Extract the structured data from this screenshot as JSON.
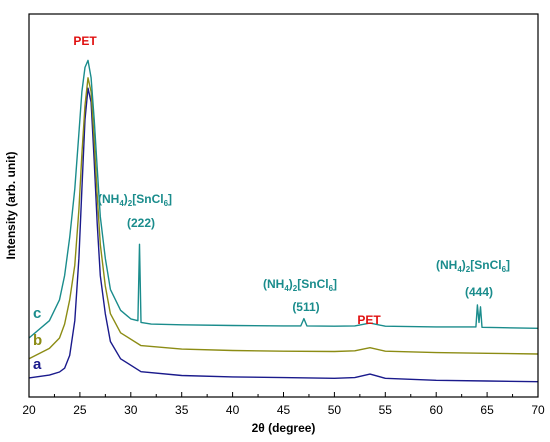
{
  "chart_data": {
    "type": "line",
    "xlabel": "2θ (degree)",
    "ylabel": "Intensity (arb. unit)",
    "xlim": [
      20,
      70
    ],
    "xticks": [
      "20",
      "25",
      "30",
      "35",
      "40",
      "45",
      "50",
      "55",
      "60",
      "65",
      "70"
    ],
    "yticks_shown": false,
    "grid": false,
    "series": [
      {
        "name": "a",
        "color": "#1a1a8c",
        "x": [
          20,
          22,
          23,
          23.5,
          24,
          24.5,
          24.9,
          25.2,
          25.5,
          25.8,
          26.1,
          26.4,
          26.7,
          27,
          27.5,
          28,
          29,
          31,
          35,
          40,
          45,
          50,
          52,
          53.5,
          55,
          60,
          65,
          70
        ],
        "y": [
          5.5,
          6.3,
          7.2,
          8.3,
          12,
          22,
          40,
          60,
          80,
          89,
          85,
          68,
          50,
          35,
          24,
          16,
          11,
          7.3,
          6.2,
          5.8,
          5.6,
          5.4,
          5.6,
          6.6,
          5.4,
          4.8,
          4.6,
          4.4
        ]
      },
      {
        "name": "b",
        "color": "#8c8c14",
        "x": [
          20,
          22,
          23,
          23.5,
          24,
          24.5,
          24.9,
          25.2,
          25.5,
          25.8,
          26.1,
          26.4,
          26.7,
          27,
          27.5,
          28,
          29,
          31,
          35,
          40,
          45,
          50,
          52,
          53.5,
          55,
          60,
          65,
          70
        ],
        "y": [
          11,
          14,
          17,
          21,
          28,
          38,
          54,
          70,
          84,
          92,
          88,
          74,
          58,
          44,
          32,
          24,
          18.5,
          14.8,
          13.8,
          13.4,
          13.2,
          13.1,
          13.3,
          14.2,
          13.2,
          12.8,
          12.6,
          12.4
        ]
      },
      {
        "name": "c",
        "color": "#1a8c8c",
        "x": [
          20,
          22,
          23,
          23.5,
          24,
          24.5,
          24.9,
          25.2,
          25.5,
          25.8,
          26.1,
          26.4,
          26.7,
          27,
          27.5,
          28,
          29,
          30,
          30.7,
          30.85,
          31,
          32,
          35,
          40,
          45,
          46.7,
          47,
          47.3,
          50,
          52,
          53.5,
          55,
          60,
          63.9,
          64.05,
          64.2,
          64.35,
          64.5,
          66,
          70
        ],
        "y": [
          17,
          22,
          28,
          35,
          46,
          60,
          76,
          88,
          95,
          97,
          92,
          80,
          66,
          52,
          40,
          31,
          25,
          22.5,
          22,
          44,
          21.5,
          21,
          20.8,
          20.6,
          20.5,
          20.5,
          22.6,
          20.5,
          20.4,
          20.5,
          21.3,
          20.4,
          20.2,
          20.2,
          26.5,
          21.5,
          26,
          20.1,
          20,
          19.8
        ]
      }
    ],
    "annotations": [
      {
        "id": "pet-main",
        "text": "PET",
        "color": "#e01010"
      },
      {
        "id": "phase-222",
        "main": "(NH",
        "sub1": "4",
        "mid": ")",
        "sub2": "2",
        "rest": "[SnCl",
        "sub3": "6",
        "close": "]",
        "hkl": "(222)",
        "color": "#1a8c8c"
      },
      {
        "id": "phase-511",
        "main": "(NH",
        "sub1": "4",
        "mid": ")",
        "sub2": "2",
        "rest": "[SnCl",
        "sub3": "6",
        "close": "]",
        "hkl": "(511)",
        "color": "#1a8c8c"
      },
      {
        "id": "pet-second",
        "text": "PET",
        "color": "#e01010"
      },
      {
        "id": "phase-444",
        "main": "(NH",
        "sub1": "4",
        "mid": ")",
        "sub2": "2",
        "rest": "[SnCl",
        "sub3": "6",
        "close": "]",
        "hkl": "(444)",
        "color": "#1a8c8c"
      }
    ],
    "series_labels": [
      {
        "series": "c",
        "text": "c",
        "color": "#1a8c8c"
      },
      {
        "series": "b",
        "text": "b",
        "color": "#8c8c14"
      },
      {
        "series": "a",
        "text": "a",
        "color": "#1a1a8c"
      }
    ]
  }
}
